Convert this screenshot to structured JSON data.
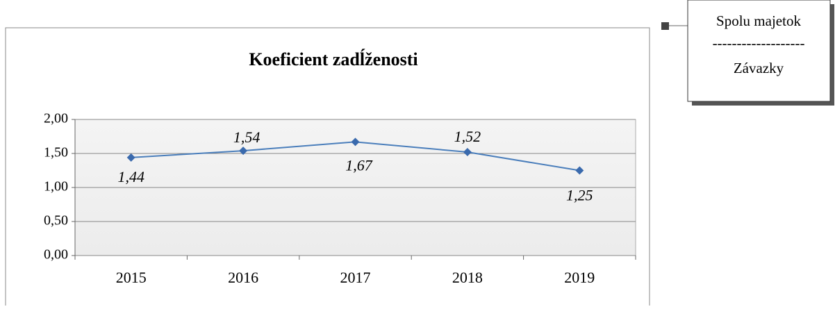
{
  "chart_data": {
    "type": "line",
    "title": "Koeficient zadĺženosti",
    "categories": [
      "2015",
      "2016",
      "2017",
      "2018",
      "2019"
    ],
    "series": [
      {
        "name": "Koeficient zadĺženosti",
        "color": "#4a7ebb",
        "values": [
          1.44,
          1.54,
          1.67,
          1.52,
          1.25
        ],
        "value_labels": [
          "1,44",
          "1,54",
          "1,67",
          "1,52",
          "1,25"
        ]
      }
    ],
    "ylim": [
      0,
      2
    ],
    "yticks": [
      {
        "value": 0,
        "label": "0,00"
      },
      {
        "value": 0.5,
        "label": "0,50"
      },
      {
        "value": 1,
        "label": "1,00"
      },
      {
        "value": 1.5,
        "label": "1,50"
      },
      {
        "value": 2,
        "label": "2,00"
      }
    ],
    "grid": true,
    "annotation": {
      "numerator": "Spolu majetok",
      "divider": "-------------------",
      "denominator": "Závazky"
    }
  }
}
